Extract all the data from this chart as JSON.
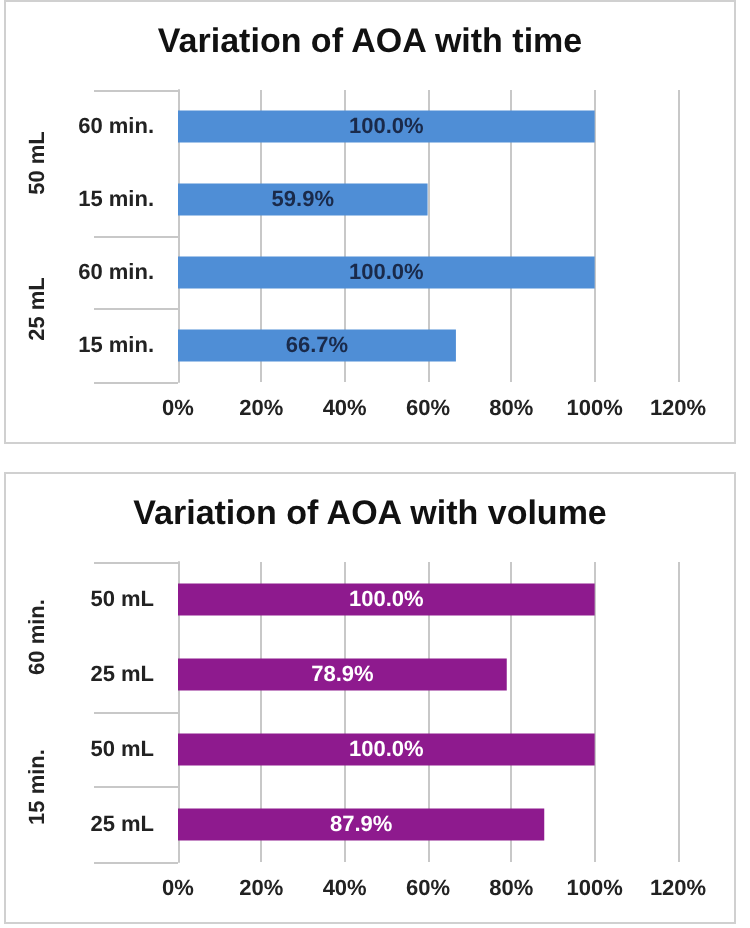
{
  "chart_data": [
    {
      "type": "bar",
      "orientation": "horizontal",
      "title": "Variation of AOA with time",
      "categories": [
        "60 min.",
        "15 min.",
        "60 min.",
        "15 min."
      ],
      "annotations": [
        "50 mL",
        "25 mL"
      ],
      "values": [
        100.0,
        59.9,
        100.0,
        66.7
      ],
      "value_labels": [
        "100.0%",
        "59.9%",
        "100.0%",
        "66.7%"
      ],
      "color": "#4f8ed6",
      "xlim": [
        0,
        120
      ],
      "xticks": [
        {
          "value": 0,
          "label": "0%"
        },
        {
          "value": 20,
          "label": "20%"
        },
        {
          "value": 40,
          "label": "40%"
        },
        {
          "value": 60,
          "label": "60%"
        },
        {
          "value": 80,
          "label": "80%"
        },
        {
          "value": 100,
          "label": "100%"
        },
        {
          "value": 120,
          "label": "120%"
        }
      ],
      "grid": "x"
    },
    {
      "type": "bar",
      "orientation": "horizontal",
      "title": "Variation of AOA with volume",
      "categories": [
        "50 mL",
        "25 mL",
        "50 mL",
        "25 mL"
      ],
      "annotations": [
        "60 min.",
        "15 min."
      ],
      "values": [
        100.0,
        78.9,
        100.0,
        87.9
      ],
      "value_labels": [
        "100.0%",
        "78.9%",
        "100.0%",
        "87.9%"
      ],
      "color": "#8e1a8e",
      "xlim": [
        0,
        120
      ],
      "xticks": [
        {
          "value": 0,
          "label": "0%"
        },
        {
          "value": 20,
          "label": "20%"
        },
        {
          "value": 40,
          "label": "40%"
        },
        {
          "value": 60,
          "label": "60%"
        },
        {
          "value": 80,
          "label": "80%"
        },
        {
          "value": 100,
          "label": "100%"
        },
        {
          "value": 120,
          "label": "120%"
        }
      ],
      "grid": "x"
    }
  ]
}
